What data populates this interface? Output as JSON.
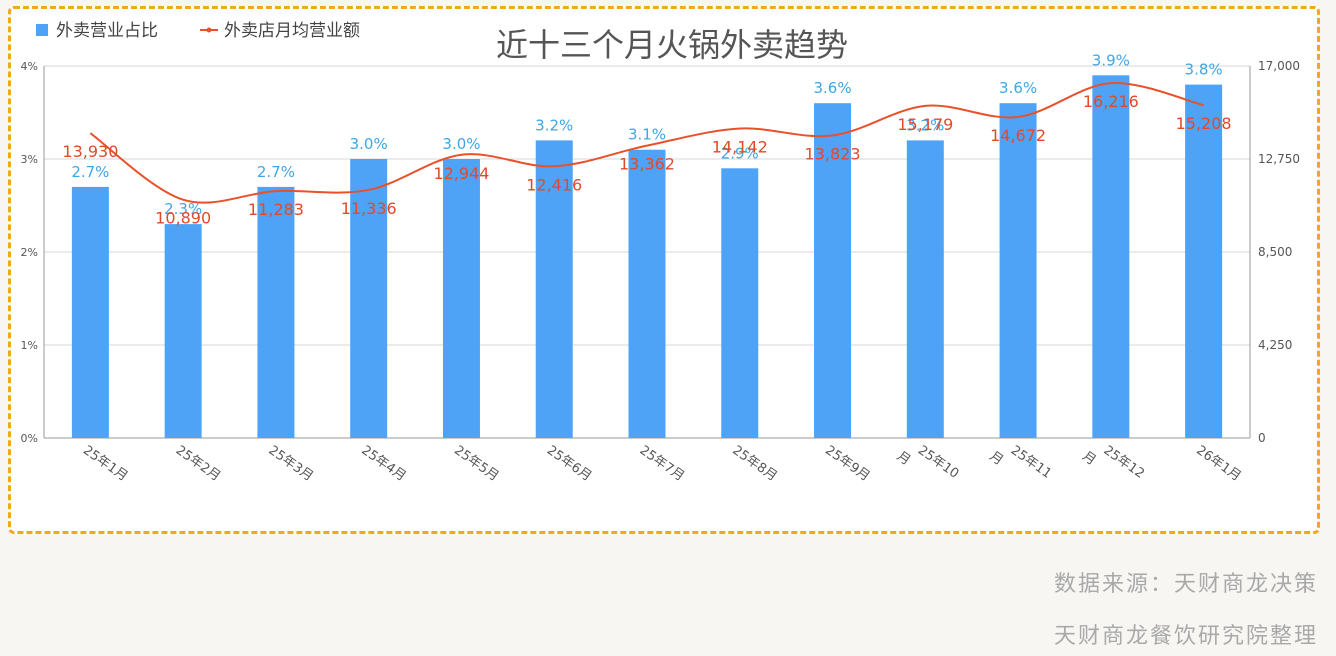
{
  "chart_data": {
    "type": "bar",
    "title": "近十三个月火锅外卖趋势",
    "categories": [
      "25年1月",
      "25年2月",
      "25年3月",
      "25年4月",
      "25年5月",
      "25年6月",
      "25年7月",
      "25年8月",
      "25年9月",
      "25年10月",
      "25年11月",
      "25年12月",
      "26年1月"
    ],
    "category_lines": [
      [
        "25年1月"
      ],
      [
        "25年2月"
      ],
      [
        "25年3月"
      ],
      [
        "25年4月"
      ],
      [
        "25年5月"
      ],
      [
        "25年6月"
      ],
      [
        "25年7月"
      ],
      [
        "25年8月"
      ],
      [
        "25年9月"
      ],
      [
        "25年10",
        "月"
      ],
      [
        "25年11",
        "月"
      ],
      [
        "25年12",
        "月"
      ],
      [
        "26年1月"
      ]
    ],
    "series": [
      {
        "name": "外卖营业占比",
        "kind": "bar",
        "axis": "left",
        "color": "#4ea3f7",
        "label_color": "#3fa6e6",
        "values": [
          2.7,
          2.3,
          2.7,
          3.0,
          3.0,
          3.2,
          3.1,
          2.9,
          3.6,
          3.2,
          3.6,
          3.9,
          3.8
        ],
        "labels": [
          "2.7%",
          "2.3%",
          "2.7%",
          "3.0%",
          "3.0%",
          "3.2%",
          "3.1%",
          "2.9%",
          "3.6%",
          "3.2%",
          "3.6%",
          "3.9%",
          "3.8%"
        ]
      },
      {
        "name": "外卖店月均营业额",
        "kind": "line",
        "axis": "right",
        "color": "#e8512a",
        "label_color": "#e04a2a",
        "values": [
          13930,
          10890,
          11283,
          11336,
          12944,
          12416,
          13362,
          14142,
          13823,
          15179,
          14672,
          16216,
          15208
        ],
        "labels": [
          "13,930",
          "10,890",
          "11,283",
          "11,336",
          "12,944",
          "12,416",
          "13,362",
          "14,142",
          "13,823",
          "15,179",
          "14,672",
          "16,216",
          "15,208"
        ]
      }
    ],
    "y_left": {
      "ylim": [
        0,
        4
      ],
      "ticks": [
        0,
        1,
        2,
        3,
        4
      ],
      "tick_labels": [
        "0%",
        "1%",
        "2%",
        "3%",
        "4%"
      ]
    },
    "y_right": {
      "ylim": [
        0,
        17000
      ],
      "ticks": [
        0,
        4250,
        8500,
        12750,
        17000
      ],
      "tick_labels": [
        "0",
        "4,250",
        "8,500",
        "12,750",
        "17,000"
      ]
    },
    "grid": true,
    "legend_position": "top-left"
  },
  "footer": {
    "source": "数据来源：天财商龙决策",
    "credit": "天财商龙餐饮研究院整理"
  }
}
